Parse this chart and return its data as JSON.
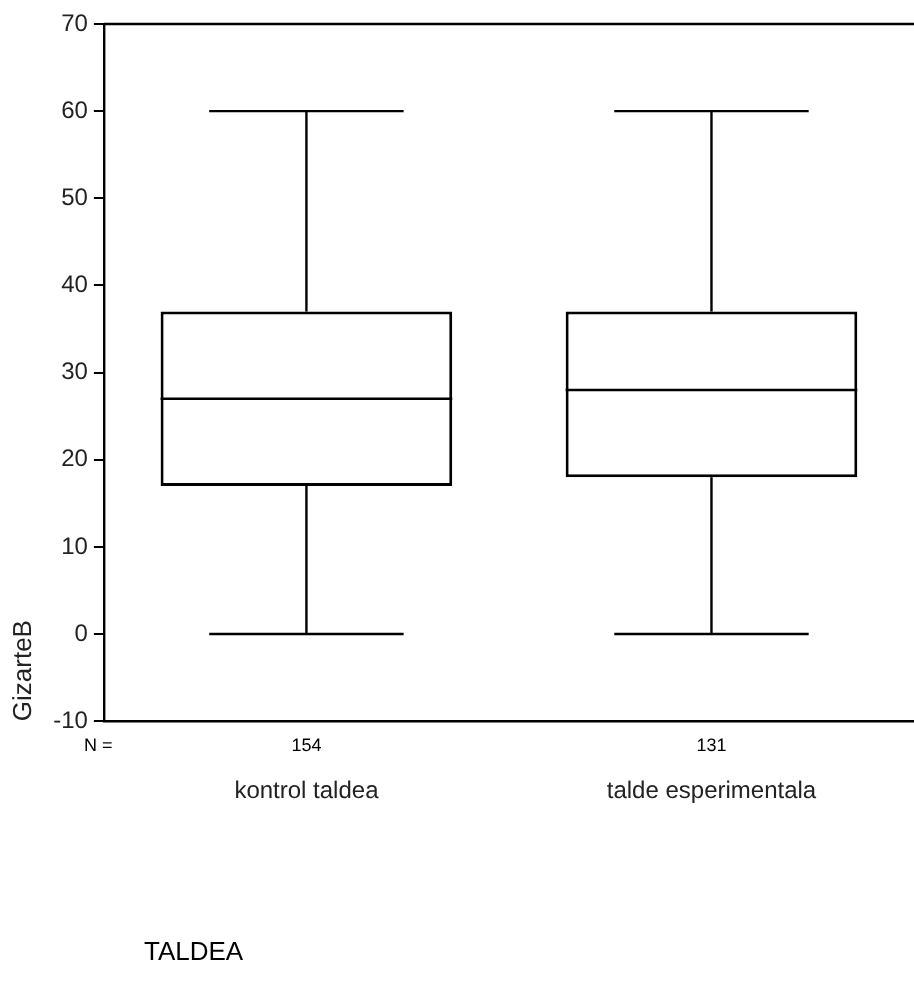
{
  "chart_data": {
    "type": "box",
    "ylabel": "GizarteB",
    "categories": [
      "kontrol taldea",
      "talde esperimentala"
    ],
    "boxes": [
      {
        "low": 0,
        "q1": 17,
        "median": 27,
        "q3": 37,
        "high": 60
      },
      {
        "low": 0,
        "q1": 18,
        "median": 28,
        "q3": 37,
        "high": 60
      }
    ],
    "color": "#ffffff",
    "ylim": [
      -10,
      70
    ],
    "yticks": [
      -10,
      0,
      10,
      20,
      30,
      40,
      50,
      60,
      70
    ],
    "grid": false,
    "annotations": [
      "N =",
      "154",
      "131",
      "TALDEA"
    ]
  }
}
